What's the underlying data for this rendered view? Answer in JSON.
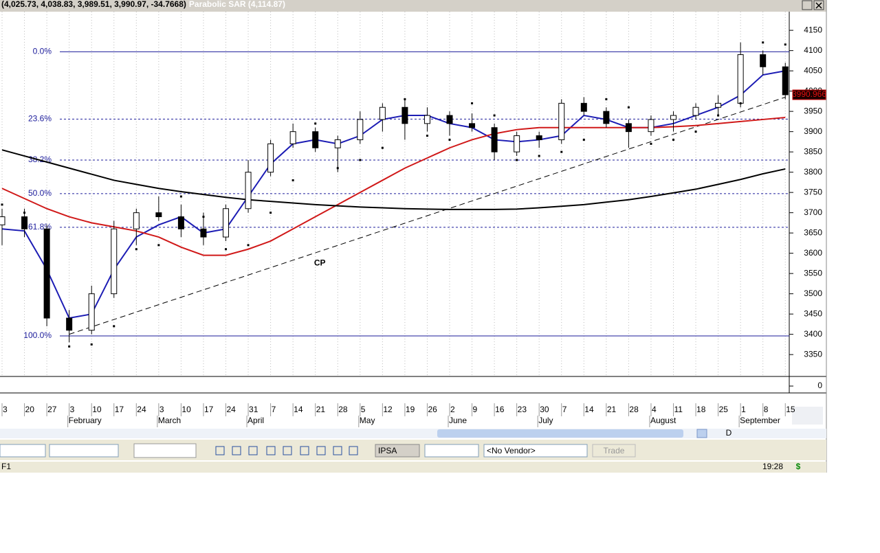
{
  "header": {
    "quote": "(4,025.73, 4,038.83, 3,989.51, 3,990.97, -34.7668)",
    "indicator": "Parabolic SAR (4,114.87)"
  },
  "chart_data": {
    "type": "candlestick",
    "categories": [
      "3",
      "20",
      "27",
      "3",
      "10",
      "17",
      "24",
      "3",
      "10",
      "17",
      "24",
      "31",
      "7",
      "14",
      "21",
      "28",
      "5",
      "12",
      "19",
      "26",
      "2",
      "9",
      "16",
      "23",
      "30",
      "7",
      "14",
      "21",
      "28",
      "4",
      "11",
      "18",
      "25",
      "1",
      "8",
      "15"
    ],
    "months": [
      {
        "label": "February",
        "index": 3
      },
      {
        "label": "March",
        "index": 7
      },
      {
        "label": "April",
        "index": 11
      },
      {
        "label": "May",
        "index": 16
      },
      {
        "label": "June",
        "index": 20
      },
      {
        "label": "July",
        "index": 24
      },
      {
        "label": "August",
        "index": 29
      },
      {
        "label": "September",
        "index": 33
      }
    ],
    "open": [
      3670,
      3690,
      3660,
      3440,
      3410,
      3500,
      3660,
      3700,
      3690,
      3660,
      3640,
      3710,
      3800,
      3870,
      3900,
      3860,
      3880,
      3930,
      3960,
      3920,
      3940,
      3920,
      3910,
      3850,
      3890,
      3880,
      3970,
      3950,
      3920,
      3900,
      3930,
      3940,
      3960,
      3970,
      4090,
      4060
    ],
    "high": [
      3710,
      3710,
      3670,
      3460,
      3520,
      3680,
      3710,
      3740,
      3720,
      3700,
      3720,
      3830,
      3880,
      3920,
      3910,
      3890,
      3950,
      3970,
      3980,
      3960,
      3950,
      3945,
      3920,
      3900,
      3900,
      3980,
      3985,
      3960,
      3930,
      3940,
      3950,
      3970,
      3990,
      4120,
      4100,
      4070
    ],
    "low": [
      3620,
      3640,
      3420,
      3380,
      3400,
      3490,
      3620,
      3680,
      3640,
      3620,
      3630,
      3700,
      3790,
      3860,
      3850,
      3800,
      3870,
      3900,
      3880,
      3900,
      3890,
      3900,
      3830,
      3840,
      3860,
      3870,
      3940,
      3910,
      3860,
      3890,
      3900,
      3930,
      3940,
      3960,
      4040,
      3980
    ],
    "close": [
      3690,
      3660,
      3440,
      3410,
      3500,
      3660,
      3700,
      3690,
      3660,
      3640,
      3710,
      3800,
      3870,
      3900,
      3860,
      3880,
      3930,
      3960,
      3920,
      3940,
      3920,
      3910,
      3850,
      3890,
      3880,
      3970,
      3950,
      3920,
      3900,
      3930,
      3940,
      3960,
      3970,
      4090,
      4060,
      3990.97
    ],
    "up_color": "#ffffff",
    "down_color": "#000000",
    "moving_averages": [
      {
        "color": "#1c1cb4",
        "values": [
          3660,
          3655,
          3560,
          3440,
          3450,
          3560,
          3640,
          3670,
          3690,
          3650,
          3660,
          3740,
          3820,
          3870,
          3880,
          3870,
          3890,
          3930,
          3940,
          3940,
          3920,
          3910,
          3880,
          3875,
          3880,
          3890,
          3940,
          3930,
          3910,
          3910,
          3920,
          3940,
          3960,
          3990,
          4040,
          4050
        ]
      },
      {
        "color": "#d01818",
        "values": [
          3760,
          3735,
          3710,
          3690,
          3675,
          3665,
          3655,
          3640,
          3615,
          3595,
          3595,
          3610,
          3630,
          3660,
          3690,
          3720,
          3750,
          3780,
          3810,
          3835,
          3860,
          3880,
          3895,
          3905,
          3910,
          3910,
          3910,
          3910,
          3910,
          3910,
          3912,
          3915,
          3920,
          3925,
          3930,
          3935
        ]
      },
      {
        "color": "#000000",
        "values": [
          3855,
          3840,
          3825,
          3810,
          3795,
          3780,
          3770,
          3760,
          3752,
          3745,
          3738,
          3732,
          3728,
          3724,
          3720,
          3717,
          3714,
          3712,
          3710,
          3709,
          3708,
          3708,
          3708,
          3709,
          3712,
          3716,
          3720,
          3726,
          3732,
          3740,
          3749,
          3758,
          3770,
          3782,
          3796,
          3808
        ]
      }
    ],
    "sar": {
      "color": "#000000",
      "values": [
        3720,
        3700,
        3640,
        3370,
        3375,
        3420,
        3610,
        3620,
        3740,
        3690,
        3610,
        3620,
        3700,
        3780,
        3920,
        3810,
        3830,
        3860,
        3980,
        3890,
        3880,
        3970,
        3940,
        3830,
        3840,
        3850,
        3880,
        3980,
        3960,
        3870,
        3880,
        3900,
        3940,
        3970,
        4120,
        4115
      ]
    },
    "trendline": {
      "x": [
        3,
        35
      ],
      "values": [
        3400,
        3985
      ]
    },
    "fib_levels": [
      {
        "label": "0.0%",
        "value": 4097,
        "dashed": false
      },
      {
        "label": "23.6%",
        "value": 3931,
        "dashed": true
      },
      {
        "label": "38.2%",
        "value": 3830,
        "dashed": true
      },
      {
        "label": "50.0%",
        "value": 3747,
        "dashed": true
      },
      {
        "label": "61.8%",
        "value": 3664,
        "dashed": true
      },
      {
        "label": "100.0%",
        "value": 3396,
        "dashed": false
      }
    ],
    "fib_color": "#1a1a9a",
    "annotation": {
      "text": "CP",
      "x": 14.2,
      "y": 3575
    },
    "last_price": 3990.966,
    "ylim": [
      3296,
      4196
    ],
    "yticks": [
      3350,
      3400,
      3450,
      3500,
      3550,
      3600,
      3650,
      3700,
      3750,
      3800,
      3850,
      3900,
      3950,
      4000,
      4050,
      4100,
      4150
    ],
    "volume_yticks": [
      0
    ],
    "grid": true
  },
  "toolbar": {
    "symbol": "IPSA",
    "vendor": "<No Vendor>",
    "trade": "Trade",
    "mode": "D"
  },
  "status": {
    "key": "F1",
    "time": "19:28",
    "icon": "$"
  }
}
